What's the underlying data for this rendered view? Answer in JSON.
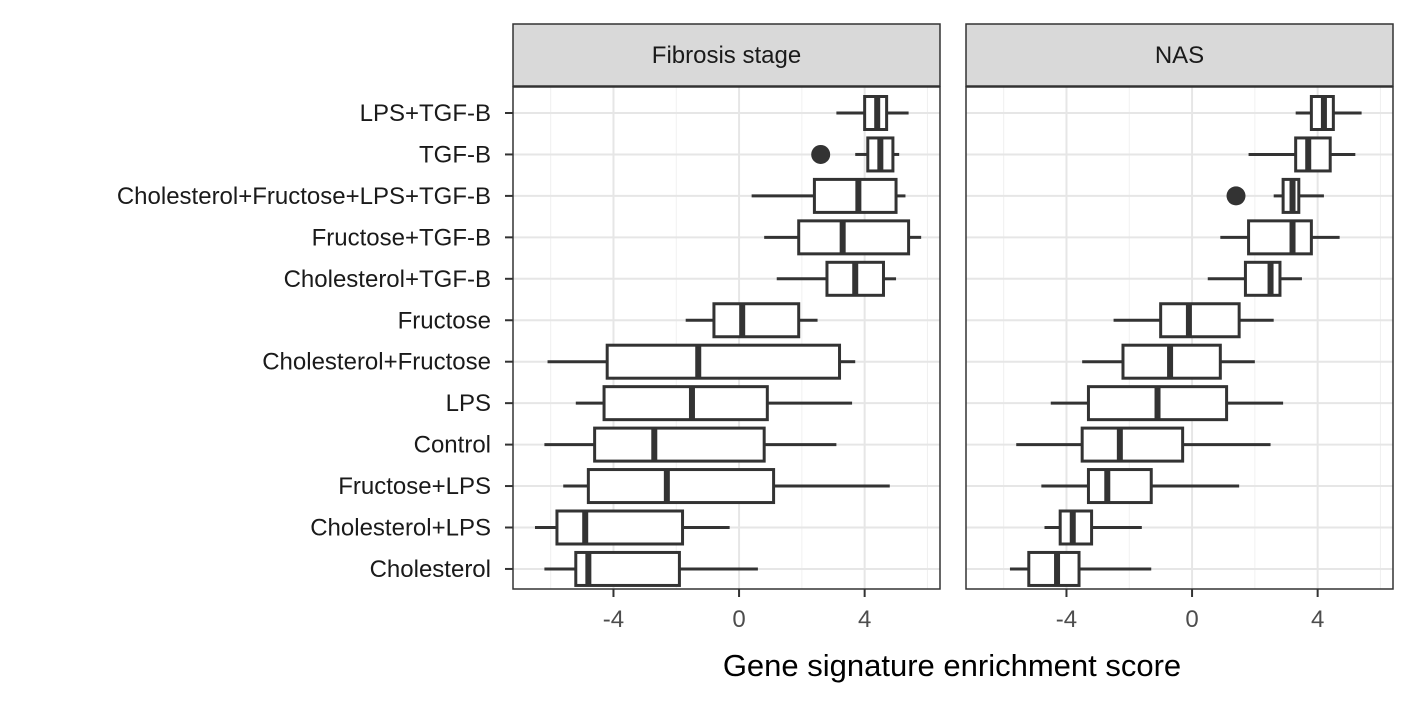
{
  "chart_data": {
    "type": "boxplot",
    "orientation": "horizontal",
    "xlabel": "Gene signature enrichment score",
    "ylabel": "",
    "xlim": [
      -7.2,
      6.4
    ],
    "x_ticks": [
      -4,
      0,
      4
    ],
    "x_tick_labels": [
      "-4",
      "0",
      "4"
    ],
    "grid": true,
    "categories": [
      "LPS+TGF-B",
      "TGF-B",
      "Cholesterol+Fructose+LPS+TGF-B",
      "Fructose+TGF-B",
      "Cholesterol+TGF-B",
      "Fructose",
      "Cholesterol+Fructose",
      "LPS",
      "Control",
      "Fructose+LPS",
      "Cholesterol+LPS",
      "Cholesterol"
    ],
    "panels": [
      {
        "title": "Fibrosis stage",
        "boxes": [
          {
            "category": "LPS+TGF-B",
            "min": 3.1,
            "q1": 4.0,
            "median": 4.4,
            "q3": 4.7,
            "max": 5.4,
            "outliers": []
          },
          {
            "category": "TGF-B",
            "min": 3.7,
            "q1": 4.1,
            "median": 4.5,
            "q3": 4.9,
            "max": 5.1,
            "outliers": [
              2.6
            ]
          },
          {
            "category": "Cholesterol+Fructose+LPS+TGF-B",
            "min": 0.4,
            "q1": 2.4,
            "median": 3.8,
            "q3": 5.0,
            "max": 5.3,
            "outliers": []
          },
          {
            "category": "Fructose+TGF-B",
            "min": 0.8,
            "q1": 1.9,
            "median": 3.3,
            "q3": 5.4,
            "max": 5.8,
            "outliers": []
          },
          {
            "category": "Cholesterol+TGF-B",
            "min": 1.2,
            "q1": 2.8,
            "median": 3.7,
            "q3": 4.6,
            "max": 5.0,
            "outliers": []
          },
          {
            "category": "Fructose",
            "min": -1.7,
            "q1": -0.8,
            "median": 0.1,
            "q3": 1.9,
            "max": 2.5,
            "outliers": []
          },
          {
            "category": "Cholesterol+Fructose",
            "min": -6.1,
            "q1": -4.2,
            "median": -1.3,
            "q3": 3.2,
            "max": 3.7,
            "outliers": []
          },
          {
            "category": "LPS",
            "min": -5.2,
            "q1": -4.3,
            "median": -1.5,
            "q3": 0.9,
            "max": 3.6,
            "outliers": []
          },
          {
            "category": "Control",
            "min": -6.2,
            "q1": -4.6,
            "median": -2.7,
            "q3": 0.8,
            "max": 3.1,
            "outliers": []
          },
          {
            "category": "Fructose+LPS",
            "min": -5.6,
            "q1": -4.8,
            "median": -2.3,
            "q3": 1.1,
            "max": 4.8,
            "outliers": []
          },
          {
            "category": "Cholesterol+LPS",
            "min": -6.5,
            "q1": -5.8,
            "median": -4.9,
            "q3": -1.8,
            "max": -0.3,
            "outliers": []
          },
          {
            "category": "Cholesterol",
            "min": -6.2,
            "q1": -5.2,
            "median": -4.8,
            "q3": -1.9,
            "max": 0.6,
            "outliers": []
          }
        ]
      },
      {
        "title": "NAS",
        "boxes": [
          {
            "category": "LPS+TGF-B",
            "min": 3.3,
            "q1": 3.8,
            "median": 4.2,
            "q3": 4.5,
            "max": 5.4,
            "outliers": []
          },
          {
            "category": "TGF-B",
            "min": 1.8,
            "q1": 3.3,
            "median": 3.7,
            "q3": 4.4,
            "max": 5.2,
            "outliers": []
          },
          {
            "category": "Cholesterol+Fructose+LPS+TGF-B",
            "min": 2.6,
            "q1": 2.9,
            "median": 3.2,
            "q3": 3.4,
            "max": 4.2,
            "outliers": [
              1.4
            ]
          },
          {
            "category": "Fructose+TGF-B",
            "min": 0.9,
            "q1": 1.8,
            "median": 3.2,
            "q3": 3.8,
            "max": 4.7,
            "outliers": []
          },
          {
            "category": "Cholesterol+TGF-B",
            "min": 0.5,
            "q1": 1.7,
            "median": 2.5,
            "q3": 2.8,
            "max": 3.5,
            "outliers": []
          },
          {
            "category": "Fructose",
            "min": -2.5,
            "q1": -1.0,
            "median": -0.1,
            "q3": 1.5,
            "max": 2.6,
            "outliers": []
          },
          {
            "category": "Cholesterol+Fructose",
            "min": -3.5,
            "q1": -2.2,
            "median": -0.7,
            "q3": 0.9,
            "max": 2.0,
            "outliers": []
          },
          {
            "category": "LPS",
            "min": -4.5,
            "q1": -3.3,
            "median": -1.1,
            "q3": 1.1,
            "max": 2.9,
            "outliers": []
          },
          {
            "category": "Control",
            "min": -5.6,
            "q1": -3.5,
            "median": -2.3,
            "q3": -0.3,
            "max": 2.5,
            "outliers": []
          },
          {
            "category": "Fructose+LPS",
            "min": -4.8,
            "q1": -3.3,
            "median": -2.7,
            "q3": -1.3,
            "max": 1.5,
            "outliers": []
          },
          {
            "category": "Cholesterol+LPS",
            "min": -4.7,
            "q1": -4.2,
            "median": -3.8,
            "q3": -3.2,
            "max": -1.6,
            "outliers": []
          },
          {
            "category": "Cholesterol",
            "min": -5.8,
            "q1": -5.2,
            "median": -4.3,
            "q3": -3.6,
            "max": -1.3,
            "outliers": []
          }
        ]
      }
    ]
  }
}
